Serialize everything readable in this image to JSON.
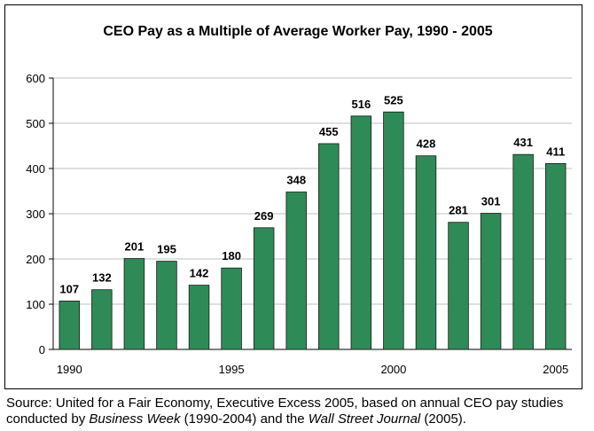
{
  "chart_data": {
    "type": "bar",
    "title": "CEO Pay as a Multiple of Average Worker Pay, 1990 - 2005",
    "categories": [
      "1990",
      "1991",
      "1992",
      "1993",
      "1994",
      "1995",
      "1996",
      "1997",
      "1998",
      "1999",
      "2000",
      "2001",
      "2002",
      "2003",
      "2004",
      "2005"
    ],
    "values": [
      107,
      132,
      201,
      195,
      142,
      180,
      269,
      348,
      455,
      516,
      525,
      428,
      281,
      301,
      431,
      411
    ],
    "data_labels": [
      "107",
      "132",
      "201",
      "195",
      "142",
      "180",
      "269",
      "348",
      "455",
      "516",
      "525",
      "428",
      "281",
      "301",
      "431",
      "411"
    ],
    "x_tick_labels": [
      "1990",
      "",
      "",
      "",
      "",
      "1995",
      "",
      "",
      "",
      "",
      "2000",
      "",
      "",
      "",
      "",
      "2005"
    ],
    "y_ticks": [
      "0",
      "100",
      "200",
      "300",
      "400",
      "500",
      "600"
    ],
    "ylim": [
      0,
      600
    ],
    "xlabel": "",
    "ylabel": "",
    "grid": true,
    "bar_color": "#2e8b57",
    "legend": "none"
  },
  "source": {
    "prefix": "Source: United for a Fair Economy, Executive Excess 2005, based on annual CEO pay studies conducted by ",
    "publication_1": "Business Week",
    "middle": " (1990-2004) and the ",
    "publication_2": "Wall Street Journal",
    "suffix": " (2005)."
  }
}
